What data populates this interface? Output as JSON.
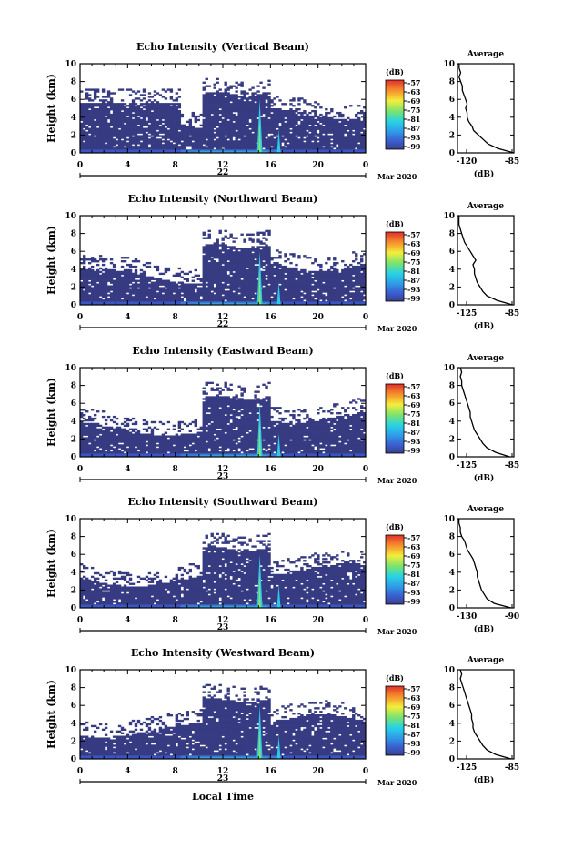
{
  "figure": {
    "xlabel": "Local Time",
    "date_label": "Mar 2020"
  },
  "chart_data": [
    {
      "type": "heatmap",
      "title": "Echo Intensity (Vertical Beam)",
      "ylabel": "Height (km)",
      "ylim": [
        0,
        10
      ],
      "yticks": [
        "0",
        "2",
        "4",
        "6",
        "8",
        "10"
      ],
      "xticks": [
        "0",
        "4",
        "8",
        "12",
        "16",
        "20",
        "0"
      ],
      "day": "22",
      "colorbar": {
        "unit": "(dB)",
        "ticks": [
          "-57",
          "-63",
          "-69",
          "-75",
          "-81",
          "-87",
          "-93",
          "-99"
        ]
      },
      "average": {
        "title": "Average",
        "xlabel": "(dB)",
        "xticks": [
          "-120",
          "-85"
        ],
        "xlim": [
          -120,
          -85
        ],
        "profile": {
          "height_km": [
            0,
            0.5,
            1,
            1.5,
            2,
            2.5,
            3,
            3.5,
            4,
            4.5,
            5,
            5.5,
            6,
            6.5,
            7,
            7.5,
            8,
            8.5,
            9,
            9.5,
            10
          ],
          "db": [
            -85,
            -95,
            -101,
            -104,
            -107,
            -110,
            -111,
            -113,
            -114,
            -114,
            -115,
            -114,
            -115,
            -116,
            -117,
            -117,
            -118,
            -119,
            -118,
            -119,
            -119
          ]
        }
      }
    },
    {
      "type": "heatmap",
      "title": "Echo Intensity (Northward Beam)",
      "ylabel": "Height (km)",
      "ylim": [
        0,
        10
      ],
      "yticks": [
        "0",
        "2",
        "4",
        "6",
        "8",
        "10"
      ],
      "xticks": [
        "0",
        "4",
        "8",
        "12",
        "16",
        "20",
        "0"
      ],
      "day": "22",
      "colorbar": {
        "unit": "(dB)",
        "ticks": [
          "-57",
          "-63",
          "-69",
          "-75",
          "-81",
          "-87",
          "-93",
          "-99"
        ]
      },
      "average": {
        "title": "Average",
        "xlabel": "(dB)",
        "xticks": [
          "-125",
          "-85"
        ],
        "xlim": [
          -125,
          -85
        ],
        "profile": {
          "height_km": [
            0,
            0.5,
            1,
            1.5,
            2,
            2.5,
            3,
            3.5,
            4,
            4.5,
            5,
            5.5,
            6,
            6.5,
            7,
            7.5,
            8,
            8.5,
            9,
            9.5,
            10
          ],
          "db": [
            -86,
            -97,
            -104,
            -107,
            -109,
            -111,
            -112,
            -113,
            -113,
            -114,
            -112,
            -114,
            -116,
            -118,
            -120,
            -121,
            -122,
            -123,
            -124,
            -124,
            -124
          ]
        }
      }
    },
    {
      "type": "heatmap",
      "title": "Echo Intensity (Eastward Beam)",
      "ylabel": "Height (km)",
      "ylim": [
        0,
        10
      ],
      "yticks": [
        "0",
        "2",
        "4",
        "6",
        "8",
        "10"
      ],
      "xticks": [
        "0",
        "4",
        "8",
        "12",
        "16",
        "20",
        "0"
      ],
      "day": "23",
      "colorbar": {
        "unit": "(dB)",
        "ticks": [
          "-57",
          "-63",
          "-69",
          "-75",
          "-81",
          "-87",
          "-93",
          "-99"
        ]
      },
      "average": {
        "title": "Average",
        "xlabel": "(dB)",
        "xticks": [
          "-125",
          "-85"
        ],
        "xlim": [
          -125,
          -85
        ],
        "profile": {
          "height_km": [
            0,
            0.5,
            1,
            1.5,
            2,
            2.5,
            3,
            3.5,
            4,
            4.5,
            5,
            5.5,
            6,
            6.5,
            7,
            7.5,
            8,
            8.5,
            9,
            9.5,
            10
          ],
          "db": [
            -88,
            -98,
            -104,
            -107,
            -109,
            -111,
            -113,
            -114,
            -115,
            -116,
            -116,
            -117,
            -118,
            -119,
            -120,
            -121,
            -122,
            -122,
            -123,
            -122,
            -123
          ]
        }
      }
    },
    {
      "type": "heatmap",
      "title": "Echo Intensity (Southward Beam)",
      "ylabel": "Height (km)",
      "ylim": [
        0,
        10
      ],
      "yticks": [
        "0",
        "2",
        "4",
        "6",
        "8",
        "10"
      ],
      "xticks": [
        "0",
        "4",
        "8",
        "12",
        "16",
        "20",
        "0"
      ],
      "day": "23",
      "colorbar": {
        "unit": "(dB)",
        "ticks": [
          "-57",
          "-63",
          "-69",
          "-75",
          "-81",
          "-87",
          "-93",
          "-99"
        ]
      },
      "average": {
        "title": "Average",
        "xlabel": "(dB)",
        "xticks": [
          "-130",
          "-90"
        ],
        "xlim": [
          -130,
          -90
        ],
        "profile": {
          "height_km": [
            0,
            0.5,
            1,
            1.5,
            2,
            2.5,
            3,
            3.5,
            4,
            4.5,
            5,
            5.5,
            6,
            6.5,
            7,
            7.5,
            8,
            8.5,
            9,
            9.5,
            10
          ],
          "db": [
            -92,
            -104,
            -109,
            -111,
            -113,
            -114,
            -115,
            -116,
            -116,
            -117,
            -118,
            -119,
            -121,
            -123,
            -124,
            -125,
            -127,
            -128,
            -128,
            -129,
            -129
          ]
        }
      }
    },
    {
      "type": "heatmap",
      "title": "Echo Intensity (Westward Beam)",
      "ylabel": "Height (km)",
      "ylim": [
        0,
        10
      ],
      "yticks": [
        "0",
        "2",
        "4",
        "6",
        "8",
        "10"
      ],
      "xticks": [
        "0",
        "4",
        "8",
        "12",
        "16",
        "20",
        "0"
      ],
      "day": "23",
      "colorbar": {
        "unit": "(dB)",
        "ticks": [
          "-57",
          "-63",
          "-69",
          "-75",
          "-81",
          "-87",
          "-93",
          "-99"
        ]
      },
      "average": {
        "title": "Average",
        "xlabel": "(dB)",
        "xticks": [
          "-125",
          "-85"
        ],
        "xlim": [
          -125,
          -85
        ],
        "profile": {
          "height_km": [
            0,
            0.5,
            1,
            1.5,
            2,
            2.5,
            3,
            3.5,
            4,
            4.5,
            5,
            5.5,
            6,
            6.5,
            7,
            7.5,
            8,
            8.5,
            9,
            9.5,
            10
          ],
          "db": [
            -87,
            -98,
            -104,
            -107,
            -109,
            -111,
            -113,
            -114,
            -114,
            -115,
            -115,
            -116,
            -117,
            -118,
            -119,
            -120,
            -121,
            -122,
            -123,
            -122,
            -123
          ]
        }
      }
    }
  ]
}
